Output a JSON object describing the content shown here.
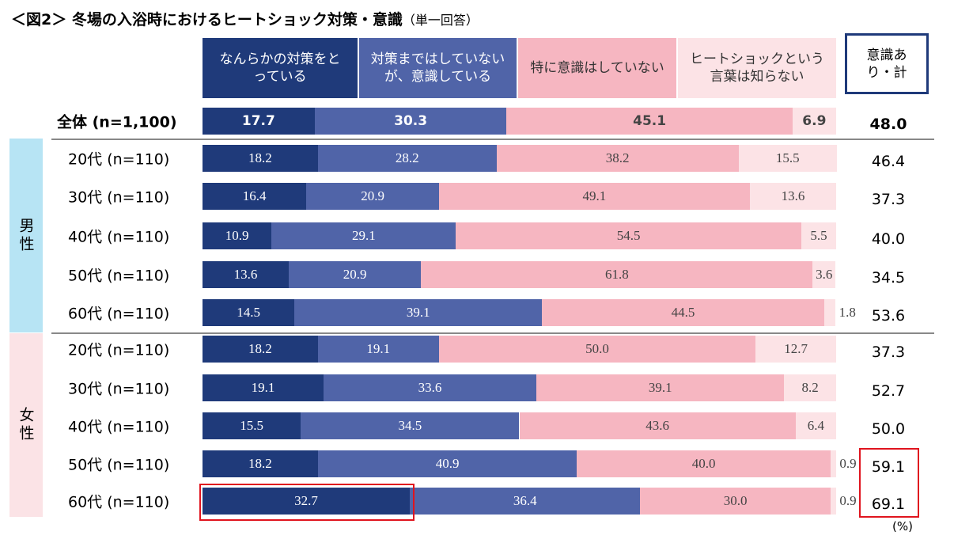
{
  "chart_data": {
    "type": "stacked-bar-horizontal",
    "title": "＜図2＞ 冬場の入浴時におけるヒートショック対策・意識",
    "subtitle": "（単一回答）",
    "categories": [
      "全体 (n=1,100)",
      "20代 (n=110)",
      "30代 (n=110)",
      "40代 (n=110)",
      "50代 (n=110)",
      "60代 (n=110)",
      "20代 (n=110)",
      "30代 (n=110)",
      "40代 (n=110)",
      "50代 (n=110)",
      "60代 (n=110)"
    ],
    "groups": [
      {
        "name": "男性",
        "color": "#b7e4f4"
      },
      {
        "name": "女性",
        "color": "#fbe3e6"
      }
    ],
    "series": [
      {
        "name": "なんらかの対策をとっている",
        "color": "#1f3a7a",
        "values": [
          17.7,
          18.2,
          16.4,
          10.9,
          13.6,
          14.5,
          18.2,
          19.1,
          15.5,
          18.2,
          32.7
        ],
        "value_labels": [
          "17.7",
          "18.2",
          "16.4",
          "10.9",
          "13.6",
          "14.5",
          "18.2",
          "19.1",
          "15.5",
          "18.2",
          "32.7"
        ]
      },
      {
        "name": "対策まではしていないが、意識している",
        "color": "#5064a8",
        "values": [
          30.3,
          28.2,
          20.9,
          29.1,
          20.9,
          39.1,
          19.1,
          33.6,
          34.5,
          40.9,
          36.4
        ],
        "value_labels": [
          "30.3",
          "28.2",
          "20.9",
          "29.1",
          "20.9",
          "39.1",
          "19.1",
          "33.6",
          "34.5",
          "40.9",
          "36.4"
        ]
      },
      {
        "name": "特に意識はしていない",
        "color": "#f6b6c1",
        "values": [
          45.1,
          38.2,
          49.1,
          54.5,
          61.8,
          44.5,
          50.0,
          39.1,
          43.6,
          40.0,
          30.0
        ],
        "value_labels": [
          "45.1",
          "38.2",
          "49.1",
          "54.5",
          "61.8",
          "44.5",
          "50.0",
          "39.1",
          "43.6",
          "40.0",
          "30.0"
        ]
      },
      {
        "name": "ヒートショックという言葉は知らない",
        "color": "#fce3e6",
        "values": [
          6.9,
          15.5,
          13.6,
          5.5,
          3.6,
          1.8,
          12.7,
          8.2,
          6.4,
          0.9,
          0.9
        ],
        "value_labels": [
          "6.9",
          "15.5",
          "13.6",
          "5.5",
          "3.6",
          "1.8",
          "12.7",
          "8.2",
          "6.4",
          "0.9",
          "0.9"
        ]
      }
    ],
    "total": {
      "name": "意識あり・計",
      "values": [
        48.0,
        46.4,
        37.3,
        40.0,
        34.5,
        53.6,
        37.3,
        52.7,
        50.0,
        59.1,
        69.1
      ],
      "value_labels": [
        "48.0",
        "46.4",
        "37.3",
        "40.0",
        "34.5",
        "53.6",
        "37.3",
        "52.7",
        "50.0",
        "59.1",
        "69.1"
      ]
    },
    "unit_label": "(%)"
  }
}
